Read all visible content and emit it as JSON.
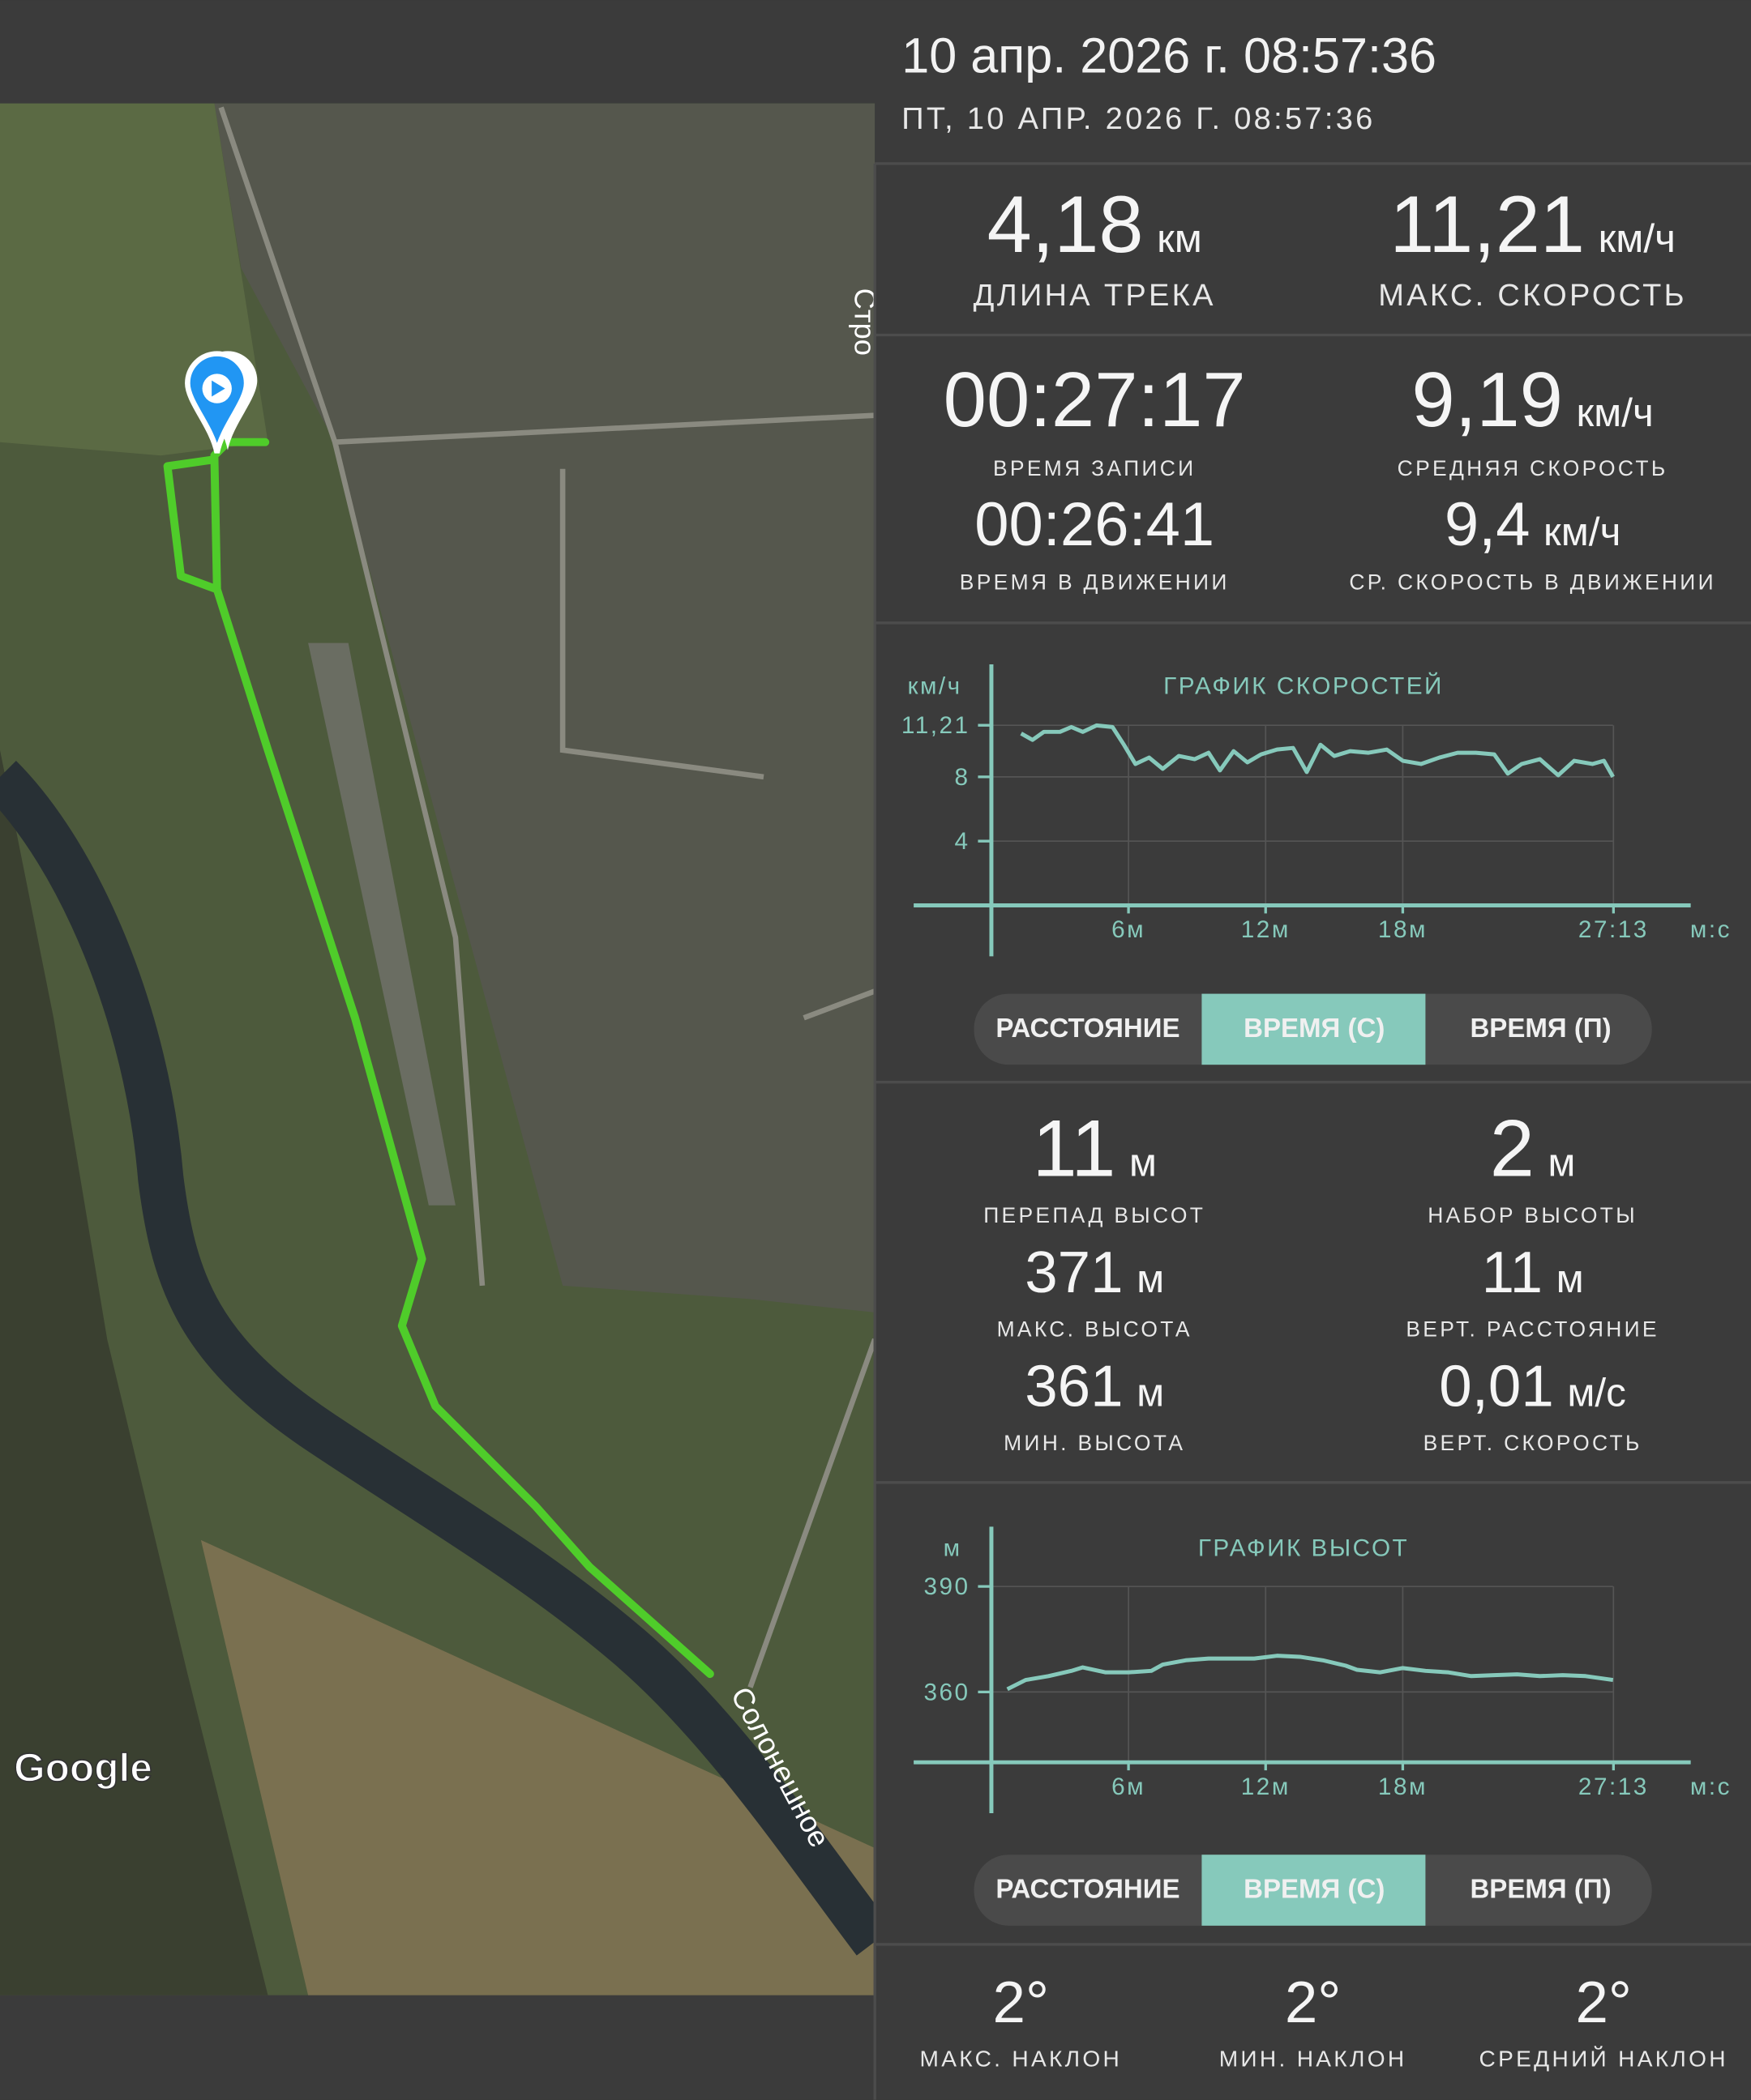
{
  "header": {
    "title": "10 апр. 2026 г. 08:57:36",
    "subtitle": "ПТ, 10 АПР. 2026 Г. 08:57:36"
  },
  "map": {
    "attribution": "Google",
    "labels": [
      "Стро",
      "Солонешное"
    ]
  },
  "summary": [
    {
      "value": "4,18",
      "unit": "км",
      "label": "ДЛИНА ТРЕКА"
    },
    {
      "value": "11,21",
      "unit": "км/ч",
      "label": "МАКС. СКОРОСТЬ"
    }
  ],
  "time": [
    {
      "value": "00:27:17",
      "label": "ВРЕМЯ ЗАПИСИ"
    },
    {
      "value": "9,19",
      "unit": "км/ч",
      "label": "СРЕДНЯЯ СКОРОСТЬ"
    },
    {
      "value": "00:26:41",
      "label": "ВРЕМЯ В ДВИЖЕНИИ"
    },
    {
      "value": "9,4",
      "unit": "км/ч",
      "label": "СР. СКОРОСТЬ В ДВИЖЕНИИ"
    }
  ],
  "elevation": [
    {
      "value": "11",
      "unit": "м",
      "label": "ПЕРЕПАД ВЫСОТ"
    },
    {
      "value": "2",
      "unit": "м",
      "label": "НАБОР ВЫСОТЫ"
    },
    {
      "value": "371",
      "unit": "м",
      "label": "МАКС. ВЫСОТА"
    },
    {
      "value": "11",
      "unit": "м",
      "label": "ВЕРТ. РАССТОЯНИЕ"
    },
    {
      "value": "361",
      "unit": "м",
      "label": "МИН. ВЫСОТА"
    },
    {
      "value": "0,01",
      "unit": "м/с",
      "label": "ВЕРТ. СКОРОСТЬ"
    }
  ],
  "slope": [
    {
      "value": "2°",
      "label": "МАКС. НАКЛОН"
    },
    {
      "value": "2°",
      "label": "МИН. НАКЛОН"
    },
    {
      "value": "2°",
      "label": "СРЕДНИЙ НАКЛОН"
    }
  ],
  "toggles": [
    [
      "РАССТОЯНИЕ",
      "ВРЕМЯ (С)",
      "ВРЕМЯ (П)"
    ],
    [
      "РАССТОЯНИЕ",
      "ВРЕМЯ (С)",
      "ВРЕМЯ (П)"
    ]
  ],
  "chart_data": [
    {
      "type": "line",
      "title": "ГРАФИК СКОРОСТЕЙ",
      "y_label": "км/ч",
      "x_label": "м:с",
      "color": "#86c9bb",
      "grid": true,
      "x": [
        1.3,
        1.8,
        2.3,
        3.0,
        3.5,
        4.0,
        4.6,
        5.3,
        5.8,
        6.3,
        6.9,
        7.5,
        8.2,
        8.9,
        9.5,
        10.0,
        10.6,
        11.2,
        11.8,
        12.5,
        13.2,
        13.8,
        14.4,
        15.0,
        15.7,
        16.5,
        17.3,
        18.0,
        18.8,
        19.6,
        20.4,
        21.2,
        22.0,
        22.6,
        23.2,
        24.0,
        24.8,
        25.5,
        26.3,
        26.8,
        27.2
      ],
      "values": [
        10.7,
        10.3,
        10.8,
        10.8,
        11.1,
        10.8,
        11.2,
        11.1,
        10.0,
        8.8,
        9.2,
        8.5,
        9.3,
        9.1,
        9.5,
        8.4,
        9.6,
        8.9,
        9.4,
        9.7,
        9.8,
        8.3,
        10.0,
        9.3,
        9.6,
        9.5,
        9.7,
        9.0,
        8.8,
        9.2,
        9.5,
        9.5,
        9.4,
        8.2,
        8.8,
        9.1,
        8.1,
        9.0,
        8.8,
        9.0,
        8.0
      ],
      "xlim": [
        0,
        30.6
      ],
      "ylim": [
        0,
        15
      ],
      "xticks": [
        {
          "value": 6,
          "label": "6м"
        },
        {
          "value": 12,
          "label": "12м"
        },
        {
          "value": 18,
          "label": "18м"
        },
        {
          "value": 27.22,
          "label": "27:13"
        }
      ],
      "yticks": [
        {
          "value": 11.21,
          "label": "11,21"
        },
        8,
        4
      ]
    },
    {
      "type": "line",
      "title": "ГРАФИК ВЫСОТ",
      "y_label": "м",
      "x_label": "м:с",
      "color": "#86c9bb",
      "grid": true,
      "x": [
        0.7,
        1.5,
        2.5,
        3.5,
        4.0,
        5.0,
        6.0,
        7.0,
        7.5,
        8.5,
        9.5,
        10.5,
        11.5,
        12.5,
        13.5,
        14.5,
        15.5,
        16.0,
        17.0,
        18.0,
        19.0,
        20.0,
        21.0,
        22.0,
        23.0,
        24.0,
        25.0,
        26.0,
        27.2
      ],
      "values": [
        360.8,
        363.4,
        364.5,
        366,
        367,
        365.6,
        365.6,
        366,
        367.8,
        369,
        369.5,
        369.5,
        369.5,
        370.3,
        370,
        369,
        367.5,
        366.3,
        365.6,
        366.8,
        366,
        365.6,
        364.5,
        364.8,
        365,
        364.5,
        364.8,
        364.5,
        363.4
      ],
      "xlim": [
        0,
        30.6
      ],
      "ylim": [
        340,
        407
      ],
      "xticks": [
        {
          "value": 6,
          "label": "6м"
        },
        {
          "value": 12,
          "label": "12м"
        },
        {
          "value": 18,
          "label": "18м"
        },
        {
          "value": 27.22,
          "label": "27:13"
        }
      ],
      "yticks": [
        390,
        360
      ]
    }
  ]
}
